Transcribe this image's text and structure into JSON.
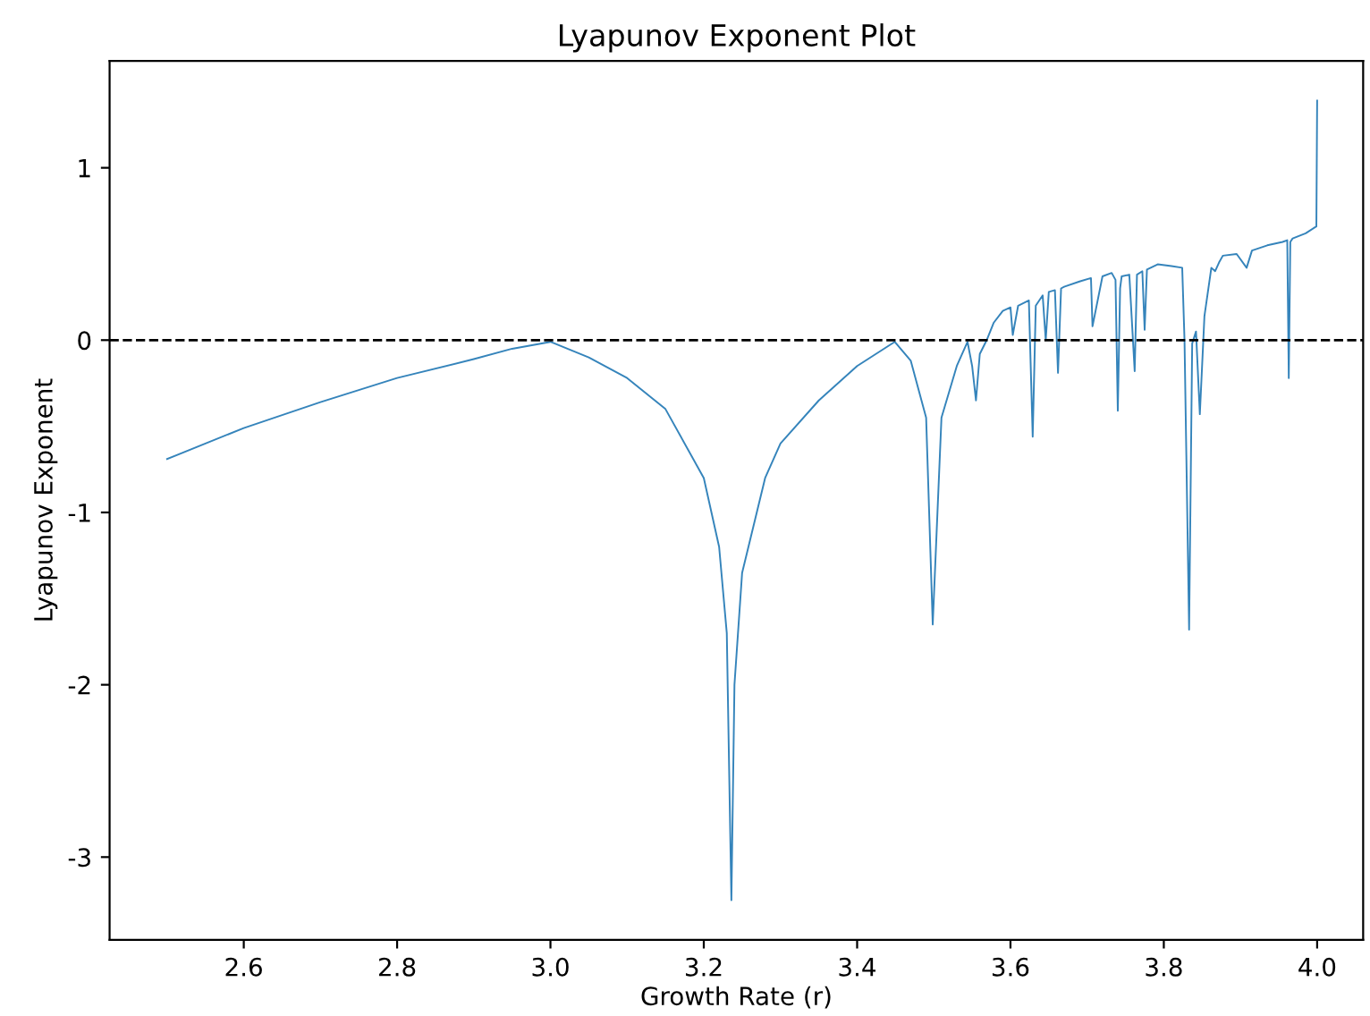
{
  "chart_data": {
    "type": "line",
    "title": "Lyapunov Exponent Plot",
    "xlabel": "Growth Rate (r)",
    "ylabel": "Lyapunov Exponent",
    "xlim": [
      2.425,
      4.06
    ],
    "ylim": [
      -3.48,
      1.62
    ],
    "xticks": [
      2.6,
      2.8,
      {
        "value": 3,
        "label": "3.0"
      },
      3.2,
      3.4,
      3.6,
      3.8,
      {
        "value": 4,
        "label": "4.0"
      }
    ],
    "yticks": [
      -3,
      -2,
      -1,
      0,
      1
    ],
    "grid": false,
    "series": [
      {
        "color": "#1f77b4",
        "x": [
          2.5,
          2.6,
          2.7,
          2.8,
          2.9,
          2.95,
          3.0,
          3.05,
          3.1,
          3.15,
          3.2,
          3.22,
          3.23,
          3.236,
          3.24,
          3.25,
          3.28,
          3.3,
          3.35,
          3.4,
          3.449,
          3.47,
          3.49,
          3.4986,
          3.51,
          3.53,
          3.544,
          3.55,
          3.555,
          3.56,
          3.569,
          3.578,
          3.59,
          3.6,
          3.603,
          3.61,
          3.624,
          3.629,
          3.633,
          3.642,
          3.646,
          3.65,
          3.658,
          3.662,
          3.666,
          3.67,
          3.69,
          3.705,
          3.707,
          3.72,
          3.732,
          3.737,
          3.74,
          3.743,
          3.745,
          3.755,
          3.762,
          3.765,
          3.772,
          3.775,
          3.778,
          3.792,
          3.81,
          3.824,
          3.827,
          3.833,
          3.837,
          3.842,
          3.847,
          3.853,
          3.862,
          3.867,
          3.872,
          3.877,
          3.895,
          3.908,
          3.915,
          3.935,
          3.955,
          3.961,
          3.963,
          3.965,
          3.968,
          3.985,
          3.999,
          4.0
        ],
        "values": [
          -0.69,
          -0.51,
          -0.36,
          -0.22,
          -0.11,
          -0.05,
          -0.01,
          -0.1,
          -0.22,
          -0.4,
          -0.8,
          -1.2,
          -1.7,
          -3.25,
          -2.0,
          -1.35,
          -0.8,
          -0.6,
          -0.35,
          -0.15,
          -0.01,
          -0.12,
          -0.45,
          -1.65,
          -0.45,
          -0.15,
          -0.01,
          -0.15,
          -0.35,
          -0.08,
          0.0,
          0.1,
          0.17,
          0.19,
          0.03,
          0.2,
          0.23,
          -0.56,
          0.2,
          0.26,
          0.0,
          0.28,
          0.29,
          -0.19,
          0.3,
          0.31,
          0.34,
          0.36,
          0.08,
          0.37,
          0.39,
          0.35,
          -0.41,
          0.3,
          0.37,
          0.38,
          -0.18,
          0.38,
          0.4,
          0.06,
          0.41,
          0.44,
          0.43,
          0.42,
          0.0,
          -1.68,
          -0.02,
          0.05,
          -0.43,
          0.14,
          0.42,
          0.4,
          0.45,
          0.49,
          0.5,
          0.42,
          0.52,
          0.55,
          0.57,
          0.58,
          -0.22,
          0.57,
          0.59,
          0.62,
          0.66,
          1.39
        ]
      }
    ],
    "ref_lines": [
      {
        "axis": "y",
        "value": 0,
        "color": "#000000",
        "line_style": "dashed"
      }
    ]
  }
}
